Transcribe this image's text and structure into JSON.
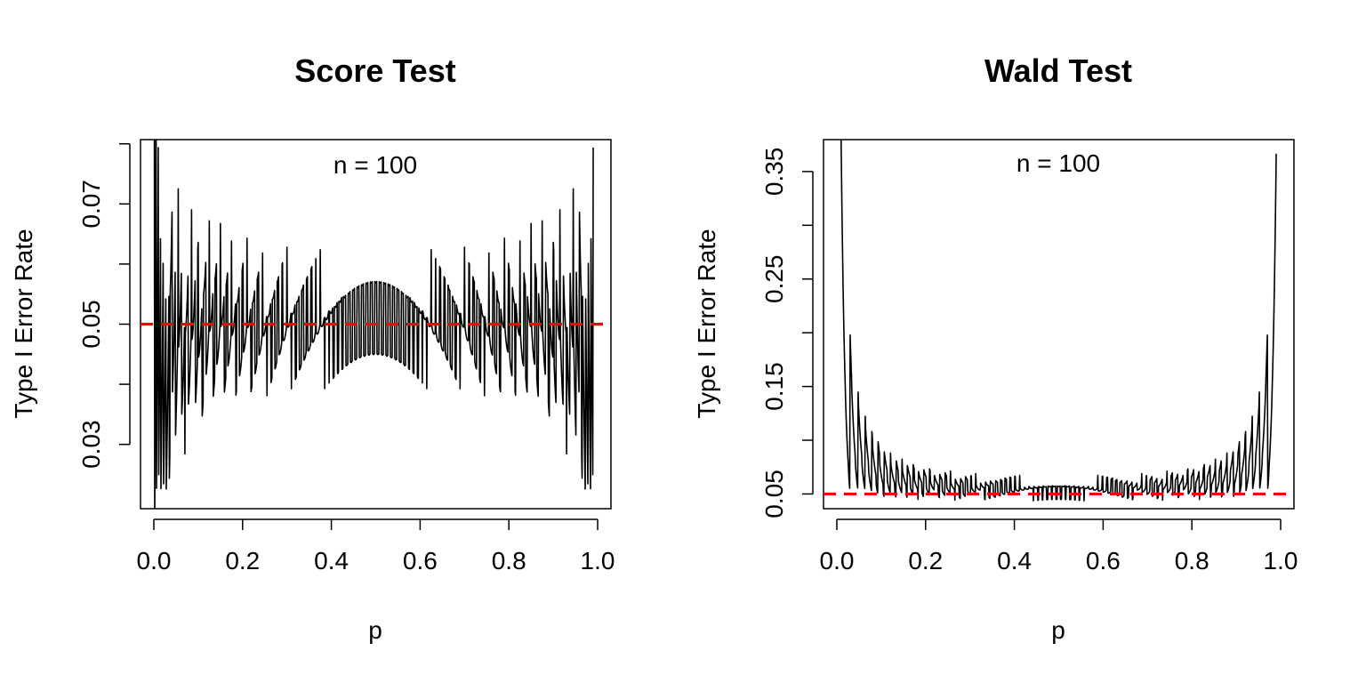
{
  "chart_data": [
    {
      "type": "line",
      "title": "Score Test",
      "xlabel": "p",
      "ylabel": "Type I Error Rate",
      "annotation": "n = 100",
      "n": 100,
      "xlim": [
        -0.03,
        1.03
      ],
      "ylim": [
        0.0193,
        0.0807
      ],
      "xticks": [
        0.0,
        0.2,
        0.4,
        0.6,
        0.8,
        1.0
      ],
      "xtick_labels": [
        "0.0",
        "0.2",
        "0.4",
        "0.6",
        "0.8",
        "1.0"
      ],
      "yticks": [
        0.03,
        0.04,
        0.05,
        0.06,
        0.07,
        0.08
      ],
      "ytick_labels": [
        "0.03",
        "",
        "0.05",
        "",
        "0.07",
        ""
      ],
      "reference_line": {
        "y": 0.05,
        "color": "#ff0000",
        "style": "dashed"
      },
      "series": [
        {
          "method": "score",
          "color": "#000000"
        }
      ],
      "grid": false
    },
    {
      "type": "line",
      "title": "Wald Test",
      "xlabel": "p",
      "ylabel": "Type I Error Rate",
      "annotation": "n = 100",
      "n": 100,
      "xlim": [
        -0.03,
        1.03
      ],
      "ylim": [
        0.0363,
        0.3797
      ],
      "xticks": [
        0.0,
        0.2,
        0.4,
        0.6,
        0.8,
        1.0
      ],
      "xtick_labels": [
        "0.0",
        "0.2",
        "0.4",
        "0.6",
        "0.8",
        "1.0"
      ],
      "yticks": [
        0.05,
        0.1,
        0.15,
        0.2,
        0.25,
        0.3,
        0.35
      ],
      "ytick_labels": [
        "0.05",
        "",
        "0.15",
        "",
        "0.25",
        "",
        "0.35"
      ],
      "reference_line": {
        "y": 0.05,
        "color": "#ff0000",
        "style": "dashed"
      },
      "series": [
        {
          "method": "wald",
          "color": "#000000"
        }
      ],
      "grid": false
    }
  ]
}
